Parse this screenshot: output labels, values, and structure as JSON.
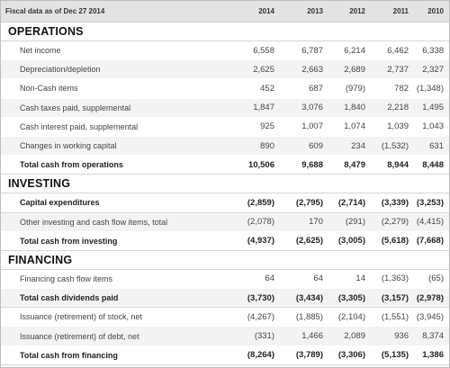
{
  "header": {
    "label": "Fiscal data as of Dec 27 2014",
    "years": [
      "2014",
      "2013",
      "2012",
      "2011",
      "2010"
    ]
  },
  "sections": [
    {
      "title": "OPERATIONS",
      "rows": [
        {
          "label": "Net income",
          "values": [
            "6,558",
            "6,787",
            "6,214",
            "6,462",
            "6,338"
          ],
          "total": false
        },
        {
          "label": "Depreciation/depletion",
          "values": [
            "2,625",
            "2,663",
            "2,689",
            "2,737",
            "2,327"
          ],
          "total": false
        },
        {
          "label": "Non-Cash items",
          "values": [
            "452",
            "687",
            "(979)",
            "782",
            "(1,348)"
          ],
          "total": false
        },
        {
          "label": "Cash taxes paid, supplemental",
          "values": [
            "1,847",
            "3,076",
            "1,840",
            "2,218",
            "1,495"
          ],
          "total": false
        },
        {
          "label": "Cash interest paid, supplemental",
          "values": [
            "925",
            "1,007",
            "1,074",
            "1,039",
            "1,043"
          ],
          "total": false
        },
        {
          "label": "Changes in working capital",
          "values": [
            "890",
            "609",
            "234",
            "(1,532)",
            "631"
          ],
          "total": false
        },
        {
          "label": "Total cash from operations",
          "values": [
            "10,506",
            "9,688",
            "8,479",
            "8,944",
            "8,448"
          ],
          "total": true
        }
      ]
    },
    {
      "title": "INVESTING",
      "rows": [
        {
          "label": "Capital expenditures",
          "values": [
            "(2,859)",
            "(2,795)",
            "(2,714)",
            "(3,339)",
            "(3,253)"
          ],
          "total": true
        },
        {
          "label": "Other investing and cash flow items, total",
          "values": [
            "(2,078)",
            "170",
            "(291)",
            "(2,279)",
            "(4,415)"
          ],
          "total": false
        },
        {
          "label": "Total cash from investing",
          "values": [
            "(4,937)",
            "(2,625)",
            "(3,005)",
            "(5,618)",
            "(7,668)"
          ],
          "total": true
        }
      ]
    },
    {
      "title": "FINANCING",
      "rows": [
        {
          "label": "Financing cash flow items",
          "values": [
            "64",
            "64",
            "14",
            "(1,363)",
            "(65)"
          ],
          "total": false
        },
        {
          "label": "Total cash dividends paid",
          "values": [
            "(3,730)",
            "(3,434)",
            "(3,305)",
            "(3,157)",
            "(2,978)"
          ],
          "total": true
        },
        {
          "label": "Issuance (retirement) of stock, net",
          "values": [
            "(4,267)",
            "(1,885)",
            "(2,104)",
            "(1,551)",
            "(3,945)"
          ],
          "total": false
        },
        {
          "label": "Issuance (retirement) of debt, net",
          "values": [
            "(331)",
            "1,466",
            "2,089",
            "936",
            "8,374"
          ],
          "total": false
        },
        {
          "label": "Total cash from financing",
          "values": [
            "(8,264)",
            "(3,789)",
            "(3,306)",
            "(5,135)",
            "1,386"
          ],
          "total": true
        }
      ]
    }
  ]
}
